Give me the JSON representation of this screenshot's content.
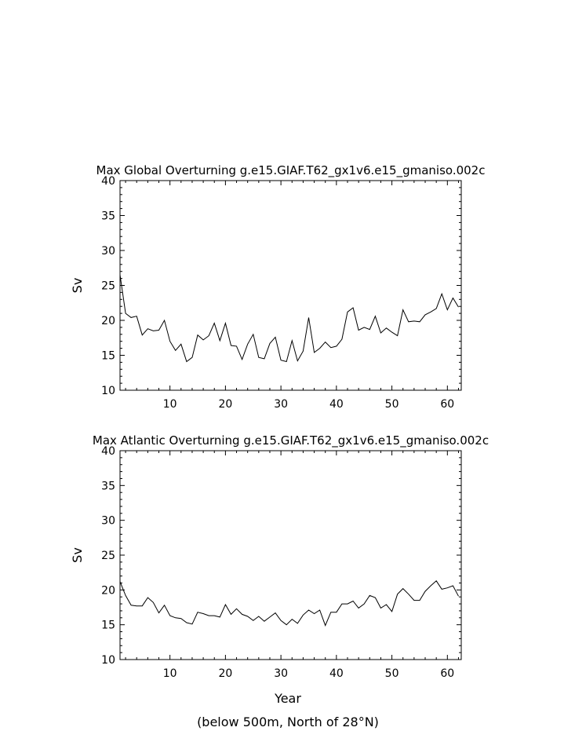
{
  "figure": {
    "bottom_xlabel": "Year",
    "footnote": "(below 500m, North of 28°N)"
  },
  "chart_data": [
    {
      "type": "line",
      "title": "Max Global Overturning g.e15.GIAF.T62_gx1v6.e15_gmaniso.002c",
      "xlabel": "",
      "ylabel": "Sv",
      "xlim": [
        1,
        62.5
      ],
      "ylim": [
        10,
        40
      ],
      "xticks": [
        10,
        20,
        30,
        40,
        50,
        60
      ],
      "yticks": [
        10,
        15,
        20,
        25,
        30,
        35,
        40
      ],
      "grid": false,
      "series": [
        {
          "x": [
            1,
            2,
            3,
            4,
            5,
            6,
            7,
            8,
            9,
            10,
            11,
            12,
            13,
            14,
            15,
            16,
            17,
            18,
            19,
            20,
            21,
            22,
            23,
            24,
            25,
            26,
            27,
            28,
            29,
            30,
            31,
            32,
            33,
            34,
            35,
            36,
            37,
            38,
            39,
            40,
            41,
            42,
            43,
            44,
            45,
            46,
            47,
            48,
            49,
            50,
            51,
            52,
            53,
            54,
            55,
            56,
            57,
            58,
            59,
            60,
            61,
            62
          ],
          "y": [
            26.5,
            21.0,
            20.4,
            20.6,
            17.9,
            18.8,
            18.5,
            18.6,
            20.0,
            17.0,
            15.7,
            16.6,
            14.1,
            14.7,
            17.9,
            17.2,
            17.8,
            19.6,
            17.1,
            19.6,
            16.4,
            16.3,
            14.4,
            16.6,
            18.0,
            14.7,
            14.5,
            16.7,
            17.6,
            14.3,
            14.1,
            17.1,
            14.2,
            15.6,
            20.4,
            15.4,
            16.0,
            16.9,
            16.1,
            16.3,
            17.3,
            21.2,
            21.8,
            18.6,
            19.0,
            18.7,
            20.6,
            18.2,
            18.9,
            18.3,
            17.8,
            21.5,
            19.8,
            19.9,
            19.8,
            20.8,
            21.2,
            21.7,
            23.8,
            21.5,
            23.2,
            21.9
          ]
        }
      ]
    },
    {
      "type": "line",
      "title": "Max Atlantic Overturning g.e15.GIAF.T62_gx1v6.e15_gmaniso.002c",
      "xlabel": "Year",
      "ylabel": "Sv",
      "xlim": [
        1,
        62.5
      ],
      "ylim": [
        10,
        40
      ],
      "xticks": [
        10,
        20,
        30,
        40,
        50,
        60
      ],
      "yticks": [
        10,
        15,
        20,
        25,
        30,
        35,
        40
      ],
      "grid": false,
      "series": [
        {
          "x": [
            1,
            2,
            3,
            4,
            5,
            6,
            7,
            8,
            9,
            10,
            11,
            12,
            13,
            14,
            15,
            16,
            17,
            18,
            19,
            20,
            21,
            22,
            23,
            24,
            25,
            26,
            27,
            28,
            29,
            30,
            31,
            32,
            33,
            34,
            35,
            36,
            37,
            38,
            39,
            40,
            41,
            42,
            43,
            44,
            45,
            46,
            47,
            48,
            49,
            50,
            51,
            52,
            53,
            54,
            55,
            56,
            57,
            58,
            59,
            60,
            61,
            62
          ],
          "y": [
            21.2,
            19.2,
            17.8,
            17.7,
            17.7,
            18.9,
            18.2,
            16.7,
            17.8,
            16.3,
            16.0,
            15.9,
            15.3,
            15.1,
            16.8,
            16.6,
            16.3,
            16.3,
            16.1,
            17.9,
            16.5,
            17.3,
            16.5,
            16.2,
            15.6,
            16.2,
            15.5,
            16.1,
            16.7,
            15.6,
            15.0,
            15.8,
            15.2,
            16.4,
            17.1,
            16.6,
            17.1,
            14.9,
            16.8,
            16.8,
            18.0,
            18.0,
            18.4,
            17.4,
            18.0,
            19.2,
            18.9,
            17.4,
            17.9,
            16.9,
            19.4,
            20.2,
            19.4,
            18.5,
            18.5,
            19.8,
            20.6,
            21.3,
            20.1,
            20.3,
            20.6,
            19.1
          ]
        }
      ]
    }
  ]
}
